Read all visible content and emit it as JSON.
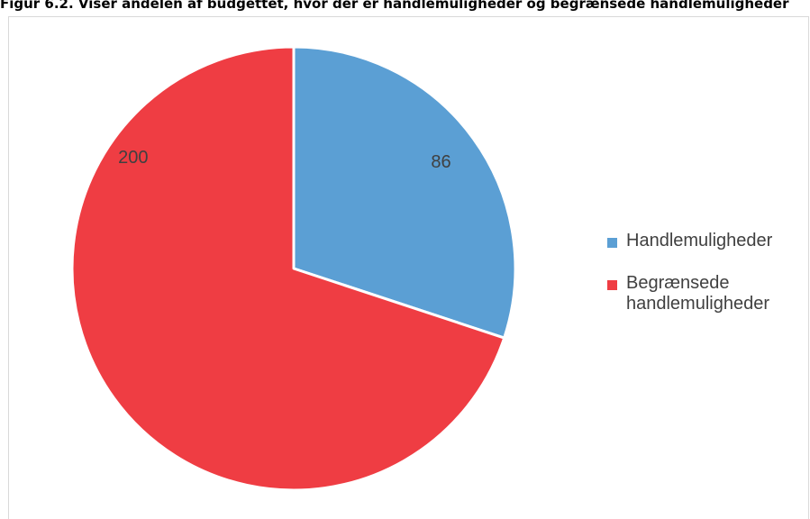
{
  "figure": {
    "caption": "Figur 6.2. Viser andelen af budgettet, hvor der er handlemuligheder og begrænsede handlemuligheder"
  },
  "chart_data": {
    "type": "pie",
    "title": "",
    "start_angle_deg": 0,
    "direction": "clockwise",
    "slices": [
      {
        "label": "Handlemuligheder",
        "value": 86,
        "color": "#5b9fd4"
      },
      {
        "label": "Begrænsede handlemuligheder",
        "value": 200,
        "color": "#ef3d43"
      }
    ],
    "data_labels": [
      "86",
      "200"
    ],
    "legend": {
      "position": "right",
      "entries": [
        "Handlemuligheder",
        "Begrænsede handlemuligheder"
      ]
    }
  },
  "colors": {
    "slice_border": "#ffffff",
    "label_text": "#404040",
    "frame_border": "#d9d9d9"
  }
}
